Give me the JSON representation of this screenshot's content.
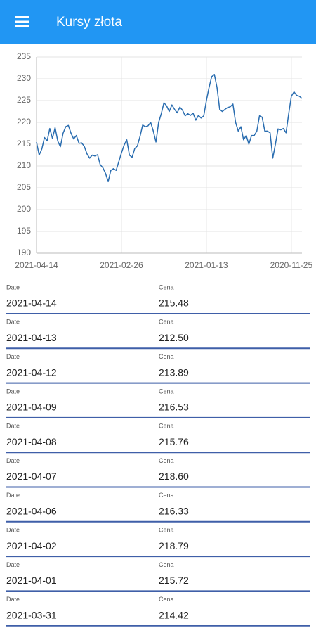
{
  "app_bar": {
    "title": "Kursy złota"
  },
  "chart_data": {
    "type": "line",
    "color": "#2a6db0",
    "grid": true,
    "categories": [
      "2021-04-14",
      null,
      null,
      null,
      null,
      null,
      null,
      null,
      null,
      null,
      null,
      null,
      null,
      null,
      null,
      null,
      null,
      null,
      null,
      null,
      null,
      null,
      null,
      null,
      null,
      null,
      null,
      null,
      null,
      null,
      null,
      null,
      "2021-02-26",
      null,
      null,
      null,
      null,
      null,
      null,
      null,
      null,
      null,
      null,
      null,
      null,
      null,
      null,
      null,
      null,
      null,
      null,
      null,
      null,
      null,
      null,
      null,
      null,
      null,
      null,
      null,
      null,
      null,
      null,
      null,
      "2021-01-13",
      null,
      null,
      null,
      null,
      null,
      null,
      null,
      null,
      null,
      null,
      null,
      null,
      null,
      null,
      null,
      null,
      null,
      null,
      null,
      null,
      null,
      null,
      null,
      null,
      null,
      null,
      null,
      null,
      null,
      null,
      null,
      "2020-11-25",
      null,
      null,
      null,
      null
    ],
    "values": [
      215.48,
      212.5,
      213.89,
      216.53,
      215.76,
      218.6,
      216.33,
      218.79,
      215.72,
      214.42,
      217.5,
      219.0,
      219.3,
      217.5,
      216.2,
      217.0,
      215.2,
      215.3,
      214.5,
      212.8,
      211.8,
      212.5,
      212.3,
      212.6,
      210.3,
      209.6,
      208.3,
      206.4,
      209.0,
      209.4,
      209.0,
      211.0,
      213.0,
      214.8,
      216.0,
      212.5,
      212.0,
      214.0,
      214.6,
      216.8,
      219.4,
      219.0,
      219.2,
      220.0,
      218.0,
      215.5,
      220.0,
      222.0,
      224.5,
      223.8,
      222.5,
      224.0,
      223.0,
      222.2,
      223.5,
      222.8,
      221.5,
      222.0,
      221.6,
      222.1,
      220.5,
      221.6,
      221.0,
      221.5,
      225.0,
      228.0,
      230.5,
      231.0,
      228.0,
      223.0,
      222.5,
      223.0,
      223.4,
      223.6,
      224.2,
      220.0,
      218.0,
      219.0,
      216.0,
      217.0,
      215.0,
      217.0,
      217.0,
      218.0,
      221.5,
      221.2,
      218.0,
      218.0,
      217.6,
      211.8,
      215.0,
      218.5,
      218.3,
      218.6,
      217.6,
      222.0,
      226.0,
      227.0,
      226.2,
      226.0,
      225.5
    ],
    "ylim": [
      190,
      235
    ],
    "yticks": [
      190,
      195,
      200,
      205,
      210,
      215,
      220,
      225,
      230,
      235
    ]
  },
  "list": {
    "date_label": "Date",
    "price_label": "Cena",
    "rows": [
      {
        "date": "2021-04-14",
        "price": "215.48"
      },
      {
        "date": "2021-04-13",
        "price": "212.50"
      },
      {
        "date": "2021-04-12",
        "price": "213.89"
      },
      {
        "date": "2021-04-09",
        "price": "216.53"
      },
      {
        "date": "2021-04-08",
        "price": "215.76"
      },
      {
        "date": "2021-04-07",
        "price": "218.60"
      },
      {
        "date": "2021-04-06",
        "price": "216.33"
      },
      {
        "date": "2021-04-02",
        "price": "218.79"
      },
      {
        "date": "2021-04-01",
        "price": "215.72"
      },
      {
        "date": "2021-03-31",
        "price": "214.42"
      }
    ]
  }
}
